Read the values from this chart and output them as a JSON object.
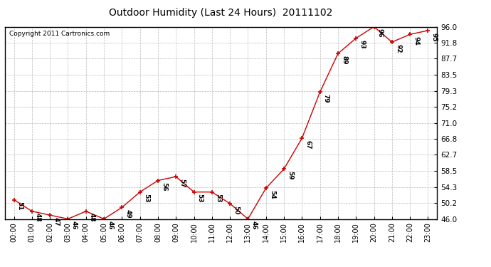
{
  "title": "Outdoor Humidity (Last 24 Hours)  20111102",
  "copyright": "Copyright 2011 Cartronics.com",
  "line_color": "#cc0000",
  "marker_color": "#cc0000",
  "bg_color": "#ffffff",
  "grid_color": "#bbbbbb",
  "x_labels": [
    "00:00",
    "01:00",
    "02:00",
    "03:00",
    "04:00",
    "05:00",
    "06:00",
    "07:00",
    "08:00",
    "09:00",
    "10:00",
    "11:00",
    "12:00",
    "13:00",
    "14:00",
    "15:00",
    "16:00",
    "17:00",
    "18:00",
    "19:00",
    "20:00",
    "21:00",
    "22:00",
    "23:00"
  ],
  "y_values": [
    51,
    48,
    47,
    46,
    48,
    46,
    49,
    53,
    56,
    57,
    53,
    53,
    50,
    46,
    54,
    59,
    67,
    79,
    89,
    93,
    96,
    92,
    94,
    95
  ],
  "ylim": [
    46.0,
    96.0
  ],
  "yticks": [
    46.0,
    50.2,
    54.3,
    58.5,
    62.7,
    66.8,
    71.0,
    75.2,
    79.3,
    83.5,
    87.7,
    91.8,
    96.0
  ]
}
